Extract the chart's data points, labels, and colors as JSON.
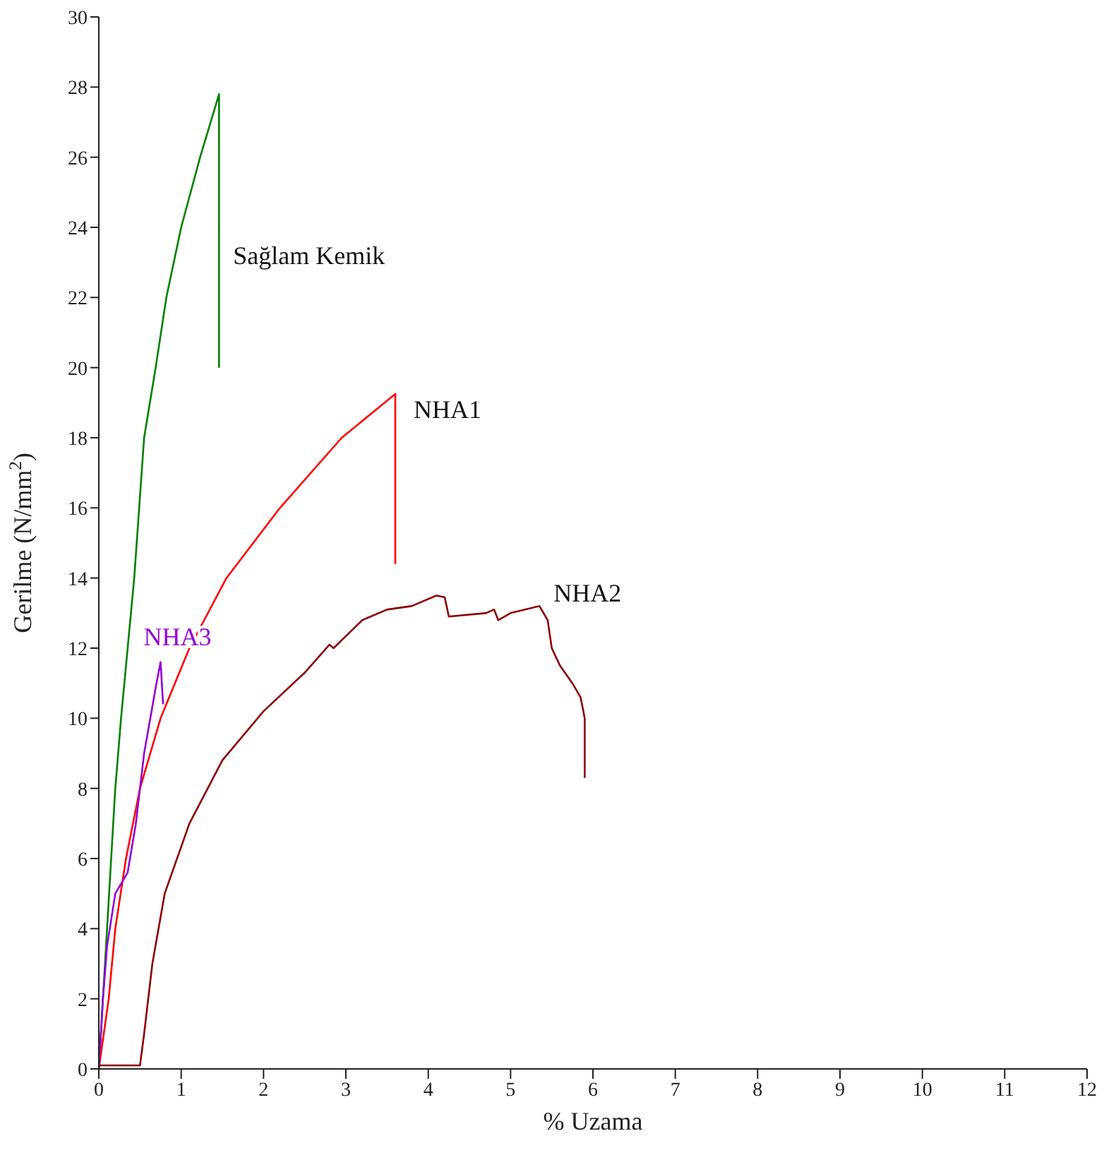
{
  "chart_data": {
    "type": "line",
    "xlabel": "% Uzama",
    "ylabel": "Gerilme (N/mm$^{2}$)",
    "xlim": [
      0,
      12
    ],
    "xticks": [
      0,
      1,
      2,
      3,
      4,
      5,
      6,
      7,
      8,
      9,
      10,
      11,
      12
    ],
    "ylim": [
      0,
      30
    ],
    "yticks": [
      0,
      2,
      4,
      6,
      8,
      10,
      12,
      14,
      16,
      18,
      20,
      22,
      24,
      26,
      28,
      30
    ],
    "grid": false,
    "legend": false,
    "marker": "none",
    "line_style": "solid",
    "series": [
      {
        "name": "Sağlam Kemik",
        "color": "#008000",
        "x": [
          0,
          0.05,
          0.1,
          0.15,
          0.2,
          0.27,
          0.35,
          0.43,
          0.55,
          0.69,
          0.82,
          1.0,
          1.23,
          1.46,
          1.46
        ],
        "values": [
          0,
          2,
          4,
          6,
          8,
          10,
          12,
          14,
          18,
          20,
          22,
          24,
          26,
          27.8,
          20
        ]
      },
      {
        "name": "NHA1",
        "color": "#ff0000",
        "x": [
          0,
          0.12,
          0.2,
          0.33,
          0.5,
          0.75,
          1.1,
          1.55,
          2.2,
          2.95,
          3.6,
          3.6
        ],
        "values": [
          0,
          2,
          4,
          6,
          8,
          10,
          12,
          14,
          16,
          18,
          19.25,
          14.4
        ]
      },
      {
        "name": "NHA3",
        "color": "#9400d3",
        "x": [
          0,
          0.05,
          0.1,
          0.2,
          0.35,
          0.45,
          0.55,
          0.7,
          0.75,
          0.78
        ],
        "values": [
          0,
          2,
          3.5,
          5,
          5.6,
          7,
          9,
          11,
          11.6,
          10.4
        ]
      },
      {
        "name": "NHA2",
        "color": "#8b0000",
        "x": [
          0,
          0.5,
          0.55,
          0.65,
          0.8,
          1.1,
          1.5,
          2,
          2.5,
          2.8,
          2.85,
          3.2,
          3.5,
          3.8,
          4.1,
          4.2,
          4.25,
          4.7,
          4.8,
          4.85,
          5.0,
          5.35,
          5.45,
          5.5,
          5.6,
          5.75,
          5.85,
          5.9,
          5.9
        ],
        "values": [
          0.1,
          0.1,
          1,
          3,
          5,
          7,
          8.8,
          10.2,
          11.3,
          12.1,
          12,
          12.8,
          13.1,
          13.2,
          13.5,
          13.45,
          12.9,
          13,
          13.1,
          12.8,
          13,
          13.2,
          12.8,
          12,
          11.5,
          11,
          10.6,
          10,
          8.3
        ]
      }
    ]
  }
}
